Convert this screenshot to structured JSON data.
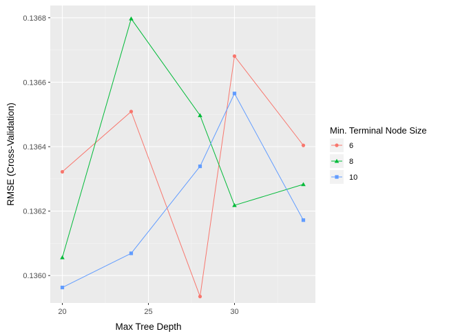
{
  "chart_data": {
    "type": "line",
    "title": "",
    "xlabel": "Max Tree Depth",
    "ylabel": "RMSE (Cross-Validation)",
    "x": [
      20,
      24,
      28,
      30,
      34
    ],
    "xlim": [
      19.3,
      34.7
    ],
    "ylim": [
      0.135915,
      0.136838
    ],
    "xticks": [
      20,
      25,
      30
    ],
    "xtick_labels": [
      "20",
      "25",
      "30"
    ],
    "yticks": [
      0.136,
      0.1362,
      0.1364,
      0.1366,
      0.1368
    ],
    "ytick_labels": [
      "0.1360",
      "0.1362",
      "0.1364",
      "0.1366",
      "0.1368"
    ],
    "grid": true,
    "legend": {
      "title": "Min. Terminal Node Size",
      "placement": "right"
    },
    "series": [
      {
        "name": "6",
        "color": "#F8766D",
        "marker": "circle",
        "values": [
          0.136322,
          0.136509,
          0.135935,
          0.136681,
          0.136404
        ]
      },
      {
        "name": "8",
        "color": "#00BA38",
        "marker": "triangle",
        "values": [
          0.136056,
          0.136797,
          0.136497,
          0.136218,
          0.136283
        ]
      },
      {
        "name": "10",
        "color": "#619CFF",
        "marker": "square",
        "values": [
          0.135963,
          0.136069,
          0.136339,
          0.136565,
          0.136172
        ]
      }
    ]
  }
}
